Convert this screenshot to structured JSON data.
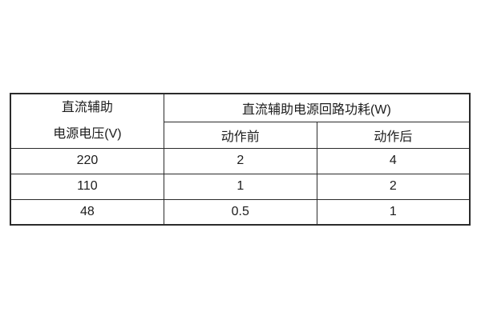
{
  "table": {
    "header": {
      "voltage_line1": "直流辅助",
      "voltage_line2": "电源电压(V)",
      "consumption": "直流辅助电源回路功耗(W)",
      "before": "动作前",
      "after": "动作后"
    },
    "rows": [
      {
        "voltage": "220",
        "before": "2",
        "after": "4"
      },
      {
        "voltage": "110",
        "before": "1",
        "after": "2"
      },
      {
        "voltage": "48",
        "before": "0.5",
        "after": "1"
      }
    ]
  },
  "colors": {
    "border": "#2b2b2b",
    "text": "#1c1c1c",
    "background": "#ffffff"
  }
}
